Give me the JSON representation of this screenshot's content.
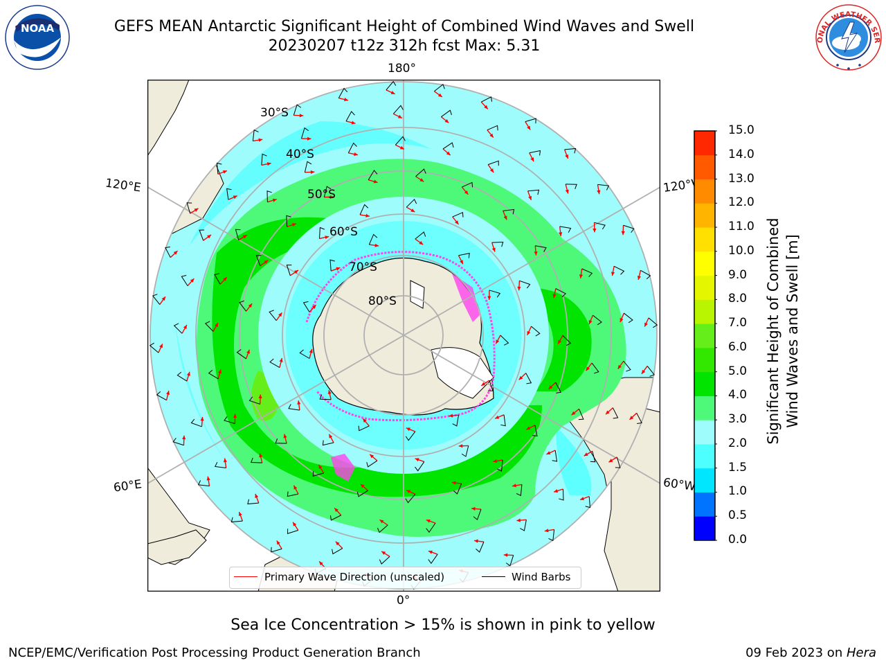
{
  "header": {
    "title_line1": "GEFS MEAN Antarctic Significant Height of Combined Wind Waves and Swell",
    "title_line2": "20230207 t12z 312h fcst   Max: 5.31"
  },
  "logos": {
    "left": {
      "icon": "noaa-logo",
      "text": "NOAA"
    },
    "right": {
      "icon": "nws-logo",
      "text": "NATIONAL WEATHER SERVICE"
    }
  },
  "map": {
    "longitude_labels": {
      "top": "180°",
      "bottom": "0°",
      "upper_left": "120°E",
      "upper_right": "120°W",
      "lower_left": "60°E",
      "lower_right": "60°W"
    },
    "latitude_labels": [
      "30°S",
      "40°S",
      "50°S",
      "60°S",
      "70°S",
      "80°S"
    ],
    "colors": {
      "ocean_light": "#9ffcfc",
      "ocean_cyan": "#4dffff",
      "band_green_light": "#4ef97a",
      "band_green": "#00e400",
      "band_yellow_green": "#66ee1a",
      "land": "#efecdc",
      "ice_pink": "#ff44ee",
      "arrow": "#ff0000",
      "barb": "#000000",
      "grid": "#b0b0b0"
    }
  },
  "legend": {
    "wave_direction_label": "Primary Wave Direction (unscaled)",
    "wind_barbs_label": "Wind Barbs"
  },
  "colorbar": {
    "title_line1": "Significant Height of Combined",
    "title_line2": "Wind Waves and Swell [m]",
    "ticks": [
      "0.0",
      "0.5",
      "1.0",
      "1.5",
      "2.0",
      "3.0",
      "4.0",
      "5.0",
      "6.0",
      "7.0",
      "8.0",
      "9.0",
      "10.0",
      "11.0",
      "12.0",
      "13.0",
      "14.0",
      "15.0"
    ],
    "colors": [
      "#0000ff",
      "#0073ff",
      "#00e6ff",
      "#4dffff",
      "#9ffcfc",
      "#4ef97a",
      "#00e400",
      "#33e800",
      "#66ee1a",
      "#b9f500",
      "#e5f700",
      "#ffff00",
      "#ffe000",
      "#ffb400",
      "#ff8c00",
      "#ff5a00",
      "#ff2800"
    ]
  },
  "footer": {
    "sea_ice_note": "Sea Ice Concentration > 15% is shown in pink to yellow",
    "left": "NCEP/EMC/Verification Post Processing Product Generation Branch",
    "right_prefix": "09 Feb 2023 on ",
    "right_host": "Hera"
  }
}
